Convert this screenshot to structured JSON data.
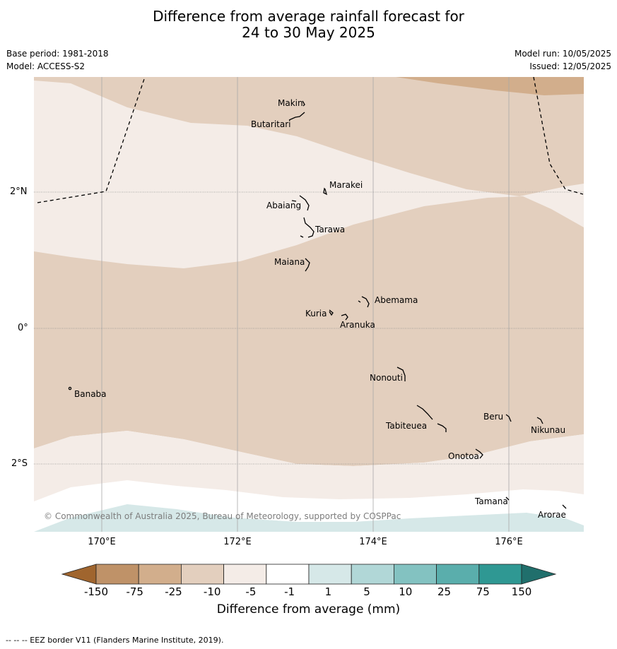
{
  "title_line1": "Difference from average rainfall forecast for",
  "title_line2": "24 to 30 May 2025",
  "base_period": "Base period: 1981-2018",
  "model": "Model: ACCESS-S2",
  "model_run": "Model run: 10/05/2025",
  "issued": "Issued: 12/05/2025",
  "lat_labels": {
    "n2": "2°N",
    "eq": "0°",
    "s2": "2°S"
  },
  "lon_labels": {
    "e170": "170°E",
    "e172": "172°E",
    "e174": "174°E",
    "e176": "176°E"
  },
  "places": {
    "makin": "Makin",
    "butaritari": "Butaritari",
    "marakei": "Marakei",
    "abaiang": "Abaiang",
    "tarawa": "Tarawa",
    "maiana": "Maiana",
    "abemama": "Abemama",
    "kuria": "Kuria",
    "aranuka": "Aranuka",
    "nonouti": "Nonouti",
    "banaba": "Banaba",
    "beru": "Beru",
    "tabiteuea": "Tabiteuea",
    "nikunau": "Nikunau",
    "onotoa": "Onotoa",
    "tamana": "Tamana",
    "arorae": "Arorae"
  },
  "copyright": "© Commonwealth of Australia 2025, Bureau of Meteorology, supported by COSPPac",
  "colorbar": {
    "label": "Difference from average (mm)",
    "ticks": [
      "-150",
      "-75",
      "-25",
      "-10",
      "-5",
      "-1",
      "1",
      "5",
      "10",
      "25",
      "75",
      "150"
    ],
    "colors": [
      "#a8703a",
      "#bf9268",
      "#d2ae8c",
      "#e3cfbe",
      "#f4ece7",
      "#ffffff",
      "#d6e8e8",
      "#b1d7d7",
      "#83c2c1",
      "#5aaeac",
      "#2f9893",
      "#1d7a76"
    ]
  },
  "footnote": "-- -- -- EEZ border V11 (Flanders Marine Institute, 2019)."
}
